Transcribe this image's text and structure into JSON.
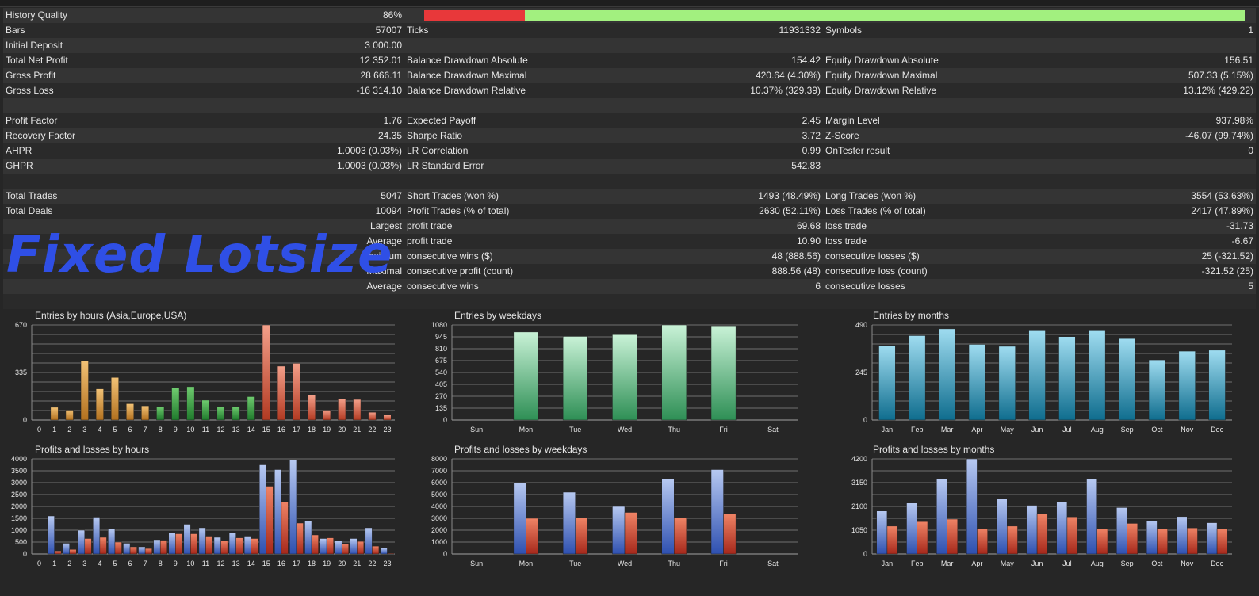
{
  "quality": {
    "label": "History Quality",
    "value": "86%",
    "fraction": 0.86
  },
  "rows": [
    [
      "History Quality",
      "86%",
      "",
      "",
      "",
      ""
    ],
    [
      "Bars",
      "57007",
      "Ticks",
      "11931332",
      "Symbols",
      "1"
    ],
    [
      "Initial Deposit",
      "3 000.00",
      "",
      "",
      "",
      ""
    ],
    [
      "Total Net Profit",
      "12 352.01",
      "Balance Drawdown Absolute",
      "154.42",
      "Equity Drawdown Absolute",
      "156.51"
    ],
    [
      "Gross Profit",
      "28 666.11",
      "Balance Drawdown Maximal",
      "420.64 (4.30%)",
      "Equity Drawdown Maximal",
      "507.33 (5.15%)"
    ],
    [
      "Gross Loss",
      "-16 314.10",
      "Balance Drawdown Relative",
      "10.37% (329.39)",
      "Equity Drawdown Relative",
      "13.12% (429.22)"
    ],
    [
      "",
      "",
      "",
      "",
      "",
      ""
    ],
    [
      "Profit Factor",
      "1.76",
      "Expected Payoff",
      "2.45",
      "Margin Level",
      "937.98%"
    ],
    [
      "Recovery Factor",
      "24.35",
      "Sharpe Ratio",
      "3.72",
      "Z-Score",
      "-46.07 (99.74%)"
    ],
    [
      "AHPR",
      "1.0003 (0.03%)",
      "LR Correlation",
      "0.99",
      "OnTester result",
      "0"
    ],
    [
      "GHPR",
      "1.0003 (0.03%)",
      "LR Standard Error",
      "542.83",
      "",
      ""
    ],
    [
      "",
      "",
      "",
      "",
      "",
      ""
    ],
    [
      "Total Trades",
      "5047",
      "Short Trades (won %)",
      "1493 (48.49%)",
      "Long Trades (won %)",
      "3554 (53.63%)"
    ],
    [
      "Total Deals",
      "10094",
      "Profit Trades (% of total)",
      "2630 (52.11%)",
      "Loss Trades (% of total)",
      "2417 (47.89%)"
    ],
    [
      "",
      "Largest",
      "profit trade",
      "69.68",
      "loss trade",
      "-31.73"
    ],
    [
      "",
      "Average",
      "profit trade",
      "10.90",
      "loss trade",
      "-6.67"
    ],
    [
      "",
      "Maximum",
      "consecutive wins ($)",
      "48 (888.56)",
      "consecutive losses ($)",
      "25 (-321.52)"
    ],
    [
      "",
      "Maximal",
      "consecutive profit (count)",
      "888.56 (48)",
      "consecutive loss (count)",
      "-321.52 (25)"
    ],
    [
      "",
      "Average",
      "consecutive wins",
      "6",
      "consecutive losses",
      "5"
    ],
    [
      "",
      "",
      "",
      "",
      "",
      ""
    ]
  ],
  "watermark": "Fixed Lotsize",
  "colors": {
    "quality_red": "#e8383a",
    "quality_green": "#a2f07f",
    "profit": "#4a6fc8",
    "loss": "#c8402a",
    "watermark": "#2f4fe6"
  },
  "chart_data": [
    {
      "id": "entries-hours",
      "type": "bar",
      "title": "Entries by hours (Asia,Europe,USA)",
      "categories": [
        "0",
        "1",
        "2",
        "3",
        "4",
        "5",
        "6",
        "7",
        "8",
        "9",
        "10",
        "11",
        "12",
        "13",
        "14",
        "15",
        "16",
        "17",
        "18",
        "19",
        "20",
        "21",
        "22",
        "23"
      ],
      "values": [
        0,
        90,
        70,
        420,
        220,
        300,
        115,
        100,
        95,
        225,
        235,
        140,
        95,
        95,
        165,
        670,
        380,
        400,
        175,
        70,
        150,
        145,
        55,
        35
      ],
      "yticks": [
        "0",
        "335",
        "670"
      ],
      "ylim": [
        0,
        670
      ]
    },
    {
      "id": "entries-weekdays",
      "type": "bar",
      "title": "Entries by weekdays",
      "categories": [
        "Sun",
        "Mon",
        "Tue",
        "Wed",
        "Thu",
        "Fri",
        "Sat"
      ],
      "values": [
        0,
        1000,
        950,
        970,
        1080,
        1070,
        0
      ],
      "yticks": [
        "0",
        "135",
        "270",
        "405",
        "540",
        "675",
        "810",
        "945",
        "1080"
      ],
      "ylim": [
        0,
        1080
      ]
    },
    {
      "id": "entries-months",
      "type": "bar",
      "title": "Entries by months",
      "categories": [
        "Jan",
        "Feb",
        "Mar",
        "Apr",
        "May",
        "Jun",
        "Jul",
        "Aug",
        "Sep",
        "Oct",
        "Nov",
        "Dec"
      ],
      "values": [
        385,
        435,
        470,
        390,
        380,
        460,
        430,
        460,
        420,
        310,
        355,
        360
      ],
      "yticks": [
        "0",
        "245",
        "490"
      ],
      "ylim": [
        0,
        490
      ]
    },
    {
      "id": "pl-hours",
      "type": "bar",
      "title": "Profits and losses by hours",
      "categories": [
        "0",
        "1",
        "2",
        "3",
        "4",
        "5",
        "6",
        "7",
        "8",
        "9",
        "10",
        "11",
        "12",
        "13",
        "14",
        "15",
        "16",
        "17",
        "18",
        "19",
        "20",
        "21",
        "22",
        "23"
      ],
      "series": [
        {
          "values": [
            0,
            1600,
            450,
            1000,
            1550,
            1050,
            450,
            300,
            600,
            900,
            1250,
            1100,
            700,
            900,
            750,
            3750,
            3550,
            3950,
            1400,
            650,
            550,
            650,
            1100,
            250
          ]
        },
        {
          "values": [
            0,
            130,
            190,
            650,
            700,
            500,
            300,
            230,
            580,
            850,
            850,
            750,
            550,
            680,
            650,
            2850,
            2200,
            1300,
            800,
            680,
            430,
            530,
            330,
            30
          ]
        }
      ],
      "yticks": [
        "0",
        "500",
        "1000",
        "1500",
        "2000",
        "2500",
        "3000",
        "3500",
        "4000"
      ],
      "ylim": [
        0,
        4000
      ]
    },
    {
      "id": "pl-weekdays",
      "type": "bar",
      "title": "Profits and losses by weekdays",
      "categories": [
        "Sun",
        "Mon",
        "Tue",
        "Wed",
        "Thu",
        "Fri",
        "Sat"
      ],
      "series": [
        {
          "values": [
            0,
            6000,
            5200,
            4000,
            6300,
            7100,
            0
          ]
        },
        {
          "values": [
            0,
            3000,
            3050,
            3500,
            3050,
            3400,
            0
          ]
        }
      ],
      "yticks": [
        "0",
        "1000",
        "2000",
        "3000",
        "4000",
        "5000",
        "6000",
        "7000",
        "8000"
      ],
      "ylim": [
        0,
        8000
      ]
    },
    {
      "id": "pl-months",
      "type": "bar",
      "title": "Profits and losses by months",
      "categories": [
        "Jan",
        "Feb",
        "Mar",
        "Apr",
        "May",
        "Jun",
        "Jul",
        "Aug",
        "Sep",
        "Oct",
        "Nov",
        "Dec"
      ],
      "series": [
        {
          "values": [
            1900,
            2250,
            3300,
            4200,
            2450,
            2150,
            2300,
            3300,
            2050,
            1480,
            1650,
            1380
          ]
        },
        {
          "values": [
            1230,
            1430,
            1540,
            1130,
            1230,
            1780,
            1640,
            1120,
            1350,
            1120,
            1150,
            1120
          ]
        }
      ],
      "yticks": [
        "0",
        "1050",
        "2100",
        "3150",
        "4200"
      ],
      "ylim": [
        0,
        4200
      ]
    }
  ]
}
